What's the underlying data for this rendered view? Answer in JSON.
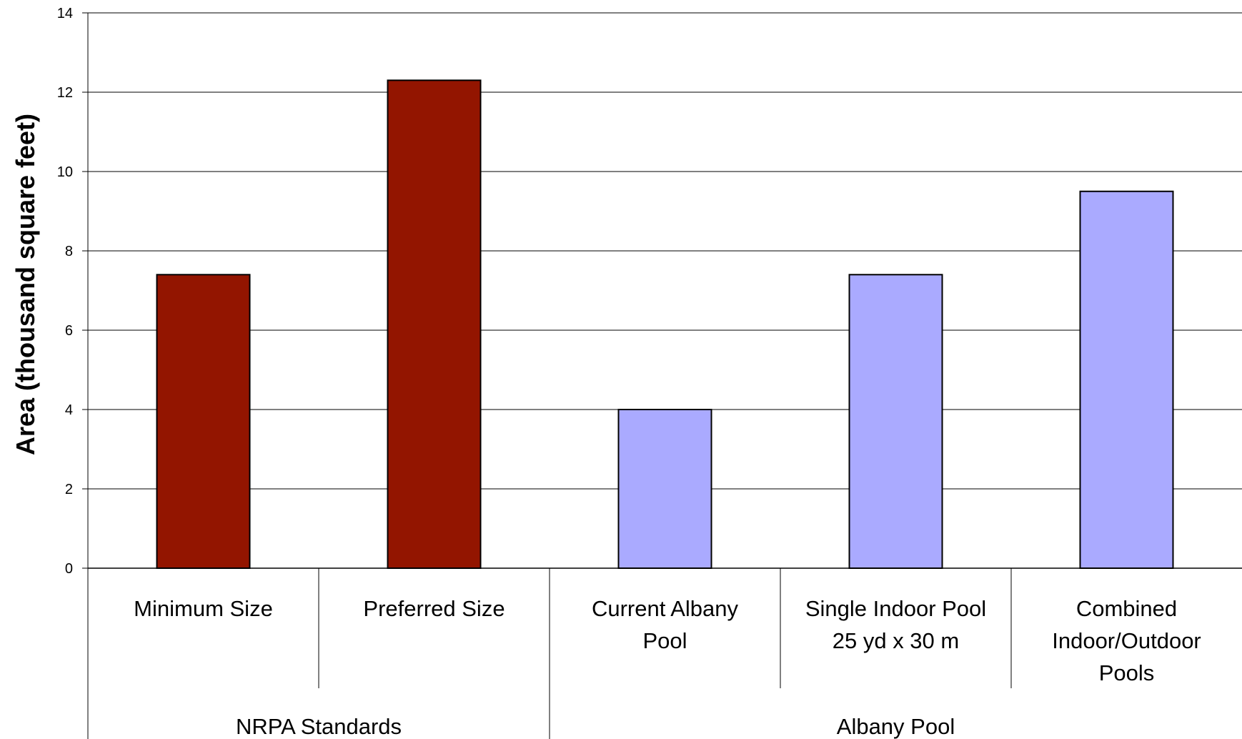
{
  "chart_data": {
    "type": "bar",
    "title": "",
    "xlabel": "",
    "ylabel": "Area (thousand square feet)",
    "ylim": [
      0,
      14
    ],
    "yticks": [
      0,
      2,
      4,
      6,
      8,
      10,
      12,
      14
    ],
    "grid": true,
    "legend": "none",
    "categories": [
      [
        "Minimum Size"
      ],
      [
        "Preferred Size"
      ],
      [
        "Current Albany",
        "Pool"
      ],
      [
        "Single Indoor Pool",
        "25 yd x 30 m"
      ],
      [
        "Combined",
        "Indoor/Outdoor",
        "Pools"
      ]
    ],
    "values": [
      7.4,
      12.3,
      4.0,
      7.4,
      9.5
    ],
    "groups": [
      {
        "label": "NRPA Standards",
        "members": [
          0,
          1
        ],
        "color": "#931500"
      },
      {
        "label": "Albany Pool",
        "members": [
          2,
          3,
          4
        ],
        "color": "#aaaaff"
      }
    ]
  }
}
